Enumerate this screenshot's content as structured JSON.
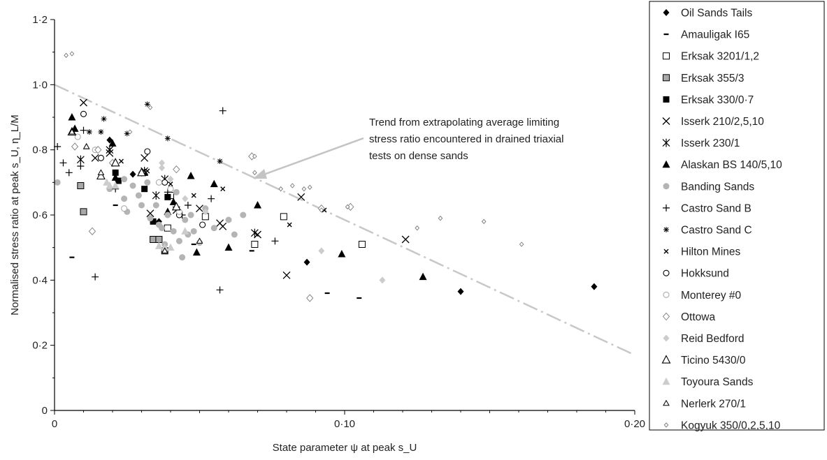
{
  "chart_data": {
    "type": "scatter",
    "xlabel": "State parameter ψ at peak s_U",
    "ylabel": "Normalised stress ratio at peak s_U, η_L/M",
    "xlim": [
      0,
      0.2
    ],
    "ylim": [
      0,
      1.2
    ],
    "x_ticks": [
      "0",
      "0·10",
      "0·20"
    ],
    "y_ticks": [
      "0",
      "0·2",
      "0·4",
      "0·6",
      "0·8",
      "1·0",
      "1·2"
    ],
    "grid": false,
    "legend_position": "right",
    "annotation": {
      "lines": [
        "Trend from extrapolating average limiting",
        "stress ratio encountered in drained triaxial",
        "tests on dense sands"
      ]
    },
    "trend_line": {
      "x": [
        0,
        0.2
      ],
      "y": [
        1.0,
        0.17
      ],
      "style": "dash-dot",
      "color": "#c8c8c8"
    },
    "series": [
      {
        "name": "Oil Sands Tails",
        "marker": "diamond-filled",
        "color": "#000000",
        "points": [
          [
            0.027,
            0.725
          ],
          [
            0.036,
            0.58
          ],
          [
            0.069,
            0.51
          ],
          [
            0.087,
            0.455
          ],
          [
            0.14,
            0.365
          ],
          [
            0.186,
            0.38
          ],
          [
            0.019,
            0.83
          ]
        ]
      },
      {
        "name": "Amauligak I65",
        "marker": "dash",
        "color": "#000000",
        "points": [
          [
            0.006,
            0.47
          ],
          [
            0.021,
            0.63
          ],
          [
            0.048,
            0.51
          ],
          [
            0.068,
            0.49
          ],
          [
            0.094,
            0.36
          ],
          [
            0.105,
            0.345
          ]
        ]
      },
      {
        "name": "Erksak 3201/1,2",
        "marker": "square-open",
        "color": "#000000",
        "points": [
          [
            0.039,
            0.56
          ],
          [
            0.052,
            0.595
          ],
          [
            0.069,
            0.51
          ],
          [
            0.079,
            0.595
          ],
          [
            0.106,
            0.51
          ],
          [
            0.04,
            0.66
          ]
        ]
      },
      {
        "name": "Erksak 355/3",
        "marker": "square-gray",
        "color": "#999999",
        "points": [
          [
            0.009,
            0.69
          ],
          [
            0.01,
            0.61
          ],
          [
            0.034,
            0.525
          ],
          [
            0.038,
            0.49
          ],
          [
            0.036,
            0.525
          ]
        ]
      },
      {
        "name": "Erksak 330/0·7",
        "marker": "square-filled",
        "color": "#000000",
        "points": [
          [
            0.021,
            0.73
          ],
          [
            0.031,
            0.68
          ],
          [
            0.034,
            0.58
          ],
          [
            0.039,
            0.655
          ],
          [
            0.022,
            0.705
          ]
        ]
      },
      {
        "name": "Isserk 210/2,5,10",
        "marker": "x",
        "color": "#000000",
        "points": [
          [
            0.01,
            0.945
          ],
          [
            0.014,
            0.775
          ],
          [
            0.019,
            0.79
          ],
          [
            0.031,
            0.775
          ],
          [
            0.033,
            0.605
          ],
          [
            0.042,
            0.615
          ],
          [
            0.05,
            0.62
          ],
          [
            0.057,
            0.575
          ],
          [
            0.058,
            0.565
          ],
          [
            0.07,
            0.54
          ],
          [
            0.085,
            0.655
          ],
          [
            0.08,
            0.415
          ],
          [
            0.121,
            0.525
          ]
        ]
      },
      {
        "name": "Isserk 230/1",
        "marker": "asterisk",
        "color": "#000000",
        "points": [
          [
            0.009,
            0.77
          ],
          [
            0.019,
            0.8
          ],
          [
            0.031,
            0.735
          ],
          [
            0.035,
            0.66
          ],
          [
            0.038,
            0.71
          ],
          [
            0.069,
            0.545
          ]
        ]
      },
      {
        "name": "Alaskan BS 140/5,10",
        "marker": "triangle-filled",
        "color": "#000000",
        "points": [
          [
            0.006,
            0.9
          ],
          [
            0.007,
            0.865
          ],
          [
            0.02,
            0.82
          ],
          [
            0.021,
            0.715
          ],
          [
            0.039,
            0.61
          ],
          [
            0.041,
            0.64
          ],
          [
            0.047,
            0.72
          ],
          [
            0.049,
            0.485
          ],
          [
            0.055,
            0.695
          ],
          [
            0.06,
            0.5
          ],
          [
            0.07,
            0.63
          ],
          [
            0.099,
            0.48
          ],
          [
            0.127,
            0.41
          ],
          [
            0.031,
            0.73
          ]
        ]
      },
      {
        "name": "Banding Sands",
        "marker": "circle-gray",
        "color": "#aaaaaa",
        "points": [
          [
            0.001,
            0.7
          ],
          [
            0.024,
            0.65
          ],
          [
            0.025,
            0.61
          ],
          [
            0.027,
            0.69
          ],
          [
            0.029,
            0.66
          ],
          [
            0.03,
            0.63
          ],
          [
            0.032,
            0.7
          ],
          [
            0.033,
            0.59
          ],
          [
            0.035,
            0.63
          ],
          [
            0.036,
            0.57
          ],
          [
            0.038,
            0.51
          ],
          [
            0.039,
            0.6
          ],
          [
            0.041,
            0.55
          ],
          [
            0.042,
            0.67
          ],
          [
            0.043,
            0.52
          ],
          [
            0.044,
            0.47
          ],
          [
            0.045,
            0.585
          ],
          [
            0.046,
            0.54
          ],
          [
            0.047,
            0.6
          ],
          [
            0.048,
            0.55
          ],
          [
            0.05,
            0.515
          ],
          [
            0.052,
            0.62
          ],
          [
            0.055,
            0.56
          ],
          [
            0.06,
            0.585
          ],
          [
            0.062,
            0.54
          ],
          [
            0.065,
            0.6
          ],
          [
            0.019,
            0.68
          ],
          [
            0.024,
            0.71
          ],
          [
            0.037,
            0.56
          ]
        ]
      },
      {
        "name": "Castro Sand B",
        "marker": "plus",
        "color": "#000000",
        "points": [
          [
            0.001,
            0.81
          ],
          [
            0.003,
            0.76
          ],
          [
            0.005,
            0.73
          ],
          [
            0.009,
            0.75
          ],
          [
            0.01,
            0.86
          ],
          [
            0.014,
            0.41
          ],
          [
            0.021,
            0.68
          ],
          [
            0.039,
            0.67
          ],
          [
            0.044,
            0.6
          ],
          [
            0.046,
            0.63
          ],
          [
            0.054,
            0.65
          ],
          [
            0.058,
            0.92
          ],
          [
            0.057,
            0.37
          ],
          [
            0.076,
            0.52
          ]
        ]
      },
      {
        "name": "Castro Sand C",
        "marker": "asterisk-small",
        "color": "#000000",
        "points": [
          [
            0.017,
            0.895
          ],
          [
            0.025,
            0.85
          ],
          [
            0.032,
            0.94
          ],
          [
            0.039,
            0.835
          ],
          [
            0.057,
            0.765
          ],
          [
            0.012,
            0.855
          ],
          [
            0.016,
            0.855
          ]
        ]
      },
      {
        "name": "Hilton Mines",
        "marker": "x-small",
        "color": "#000000",
        "points": [
          [
            0.019,
            0.8
          ],
          [
            0.023,
            0.765
          ],
          [
            0.032,
            0.735
          ],
          [
            0.04,
            0.695
          ],
          [
            0.048,
            0.66
          ],
          [
            0.058,
            0.68
          ],
          [
            0.081,
            0.57
          ],
          [
            0.093,
            0.615
          ]
        ]
      },
      {
        "name": "Hokksund",
        "marker": "circle-open",
        "color": "#000000",
        "points": [
          [
            0.01,
            0.91
          ],
          [
            0.016,
            0.775
          ],
          [
            0.032,
            0.795
          ],
          [
            0.038,
            0.7
          ],
          [
            0.043,
            0.6
          ],
          [
            0.051,
            0.57
          ]
        ]
      },
      {
        "name": "Monterey #0",
        "marker": "circle-open-gray",
        "color": "#aaaaaa",
        "points": [
          [
            0.008,
            0.84
          ],
          [
            0.014,
            0.8
          ],
          [
            0.024,
            0.62
          ],
          [
            0.036,
            0.7
          ],
          [
            0.043,
            0.61
          ],
          [
            0.04,
            0.68
          ]
        ]
      },
      {
        "name": "Ottowa",
        "marker": "diamond-open",
        "color": "#888888",
        "points": [
          [
            0.007,
            0.81
          ],
          [
            0.013,
            0.55
          ],
          [
            0.015,
            0.8
          ],
          [
            0.02,
            0.76
          ],
          [
            0.03,
            0.73
          ],
          [
            0.042,
            0.74
          ],
          [
            0.088,
            0.345
          ],
          [
            0.092,
            0.62
          ],
          [
            0.102,
            0.625
          ],
          [
            0.068,
            0.78
          ]
        ]
      },
      {
        "name": "Reid Bedford",
        "marker": "diamond-gray",
        "color": "#cccccc",
        "points": [
          [
            0.037,
            0.76
          ],
          [
            0.037,
            0.745
          ],
          [
            0.04,
            0.71
          ],
          [
            0.045,
            0.65
          ],
          [
            0.052,
            0.61
          ],
          [
            0.092,
            0.49
          ],
          [
            0.113,
            0.4
          ]
        ]
      },
      {
        "name": "Ticino 5430/0",
        "marker": "triangle-open",
        "color": "#000000",
        "points": [
          [
            0.006,
            0.855
          ],
          [
            0.016,
            0.72
          ],
          [
            0.021,
            0.76
          ],
          [
            0.03,
            0.73
          ],
          [
            0.042,
            0.625
          ]
        ]
      },
      {
        "name": "Toyoura Sands",
        "marker": "triangle-gray",
        "color": "#cccccc",
        "points": [
          [
            0.011,
            0.81
          ],
          [
            0.018,
            0.7
          ],
          [
            0.021,
            0.69
          ],
          [
            0.036,
            0.505
          ],
          [
            0.038,
            0.5
          ],
          [
            0.04,
            0.5
          ],
          [
            0.045,
            0.55
          ],
          [
            0.019,
            0.69
          ]
        ]
      },
      {
        "name": "Nerlerk 270/1",
        "marker": "triangle-open-small",
        "color": "#000000",
        "points": [
          [
            0.006,
            0.855
          ],
          [
            0.011,
            0.81
          ],
          [
            0.016,
            0.73
          ],
          [
            0.038,
            0.49
          ],
          [
            0.05,
            0.52
          ]
        ]
      },
      {
        "name": "Kogyuk 350/0,2,5,10",
        "marker": "diamond-small",
        "color": "#777777",
        "points": [
          [
            0.004,
            1.09
          ],
          [
            0.006,
            1.095
          ],
          [
            0.026,
            0.855
          ],
          [
            0.033,
            0.93
          ],
          [
            0.069,
            0.73
          ],
          [
            0.078,
            0.68
          ],
          [
            0.082,
            0.69
          ],
          [
            0.086,
            0.68
          ],
          [
            0.088,
            0.685
          ],
          [
            0.092,
            0.615
          ],
          [
            0.101,
            0.625
          ],
          [
            0.125,
            0.56
          ],
          [
            0.133,
            0.59
          ],
          [
            0.148,
            0.58
          ],
          [
            0.161,
            0.51
          ],
          [
            0.069,
            0.78
          ]
        ]
      }
    ]
  }
}
